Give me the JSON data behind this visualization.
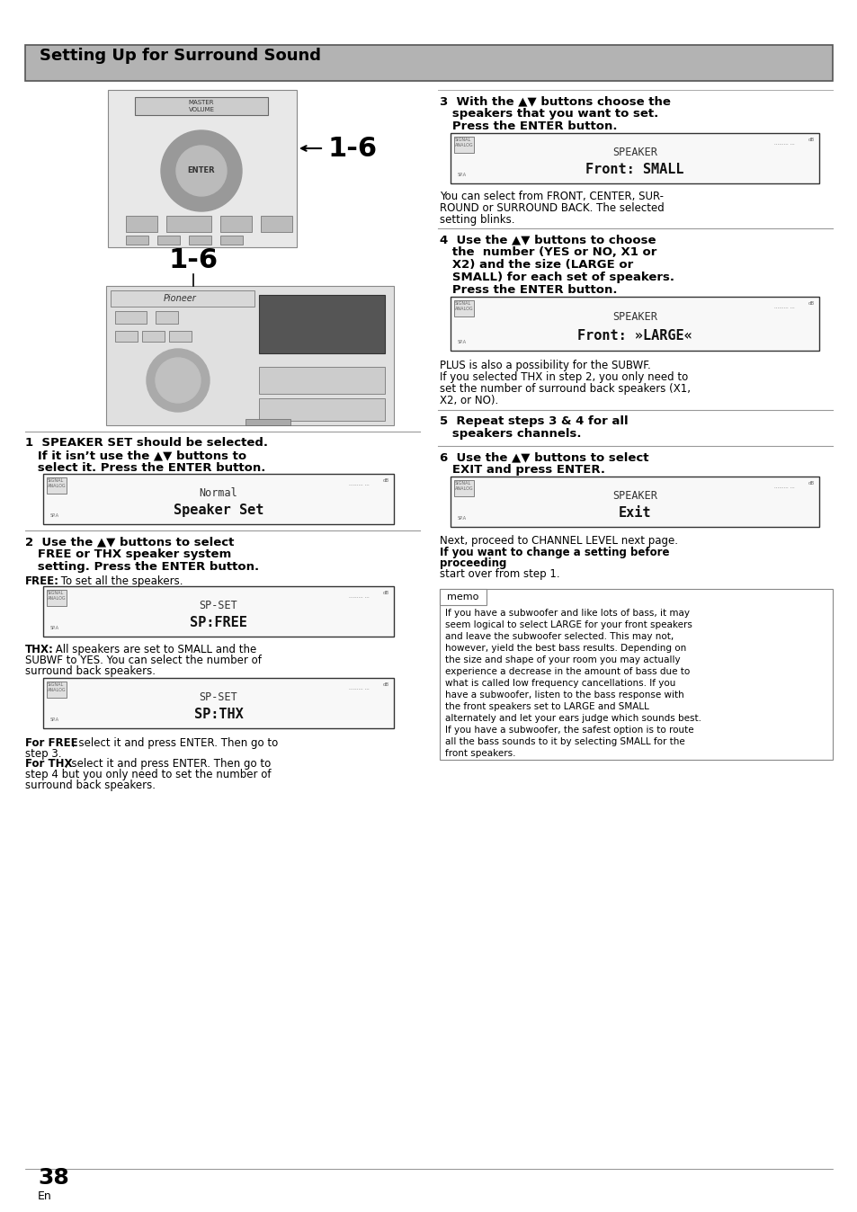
{
  "bg_color": "#ffffff",
  "header_bg": "#b3b3b3",
  "header_text": "Setting Up for Surround Sound",
  "page_number": "38",
  "page_sub": "En",
  "label_16": "1-6",
  "step1_line1": "1  SPEAKER SET should be selected.",
  "step1_line2": "   If it isn’t use the ▲▼ buttons to",
  "step1_line3": "   select it. Press the ENTER button.",
  "step2_line1": "2  Use the ▲▼ buttons to select",
  "step2_line2": "   FREE or THX speaker system",
  "step2_line3": "   setting. Press the ENTER button.",
  "free_bold": "FREE:",
  "free_rest": " To set all the speakers.",
  "thx_bold": "THX:",
  "thx_rest": " All speakers are set to SMALL and the\nSUBWF to YES. You can select the number of\nsurround back speakers.",
  "for_free_bold": "For FREE",
  "for_free_rest": ", select it and press ENTER. Then go to\nstep 3.",
  "for_thx_bold": "For THX",
  "for_thx_rest": ", select it and press ENTER. Then go to\nstep 4 but you only need to set the number of\nsurround back speakers.",
  "step3_line1": "3  With the ▲▼ buttons choose the",
  "step3_line2": "   speakers that you want to set.",
  "step3_line3": "   Press the ENTER button.",
  "step3_note": "You can select from FRONT, CENTER, SUR-\nROUND or SURROUND BACK. The selected\nsetting blinks.",
  "step4_line1": "4  Use the ▲▼ buttons to choose",
  "step4_line2": "   the  number (YES or NO, X1 or",
  "step4_line3": "   X2) and the size (LARGE or",
  "step4_line4": "   SMALL) for each set of speakers.",
  "step4_line5": "   Press the ENTER button.",
  "step4_note": "PLUS is also a possibility for the SUBWF.\nIf you selected THX in step 2, you only need to\nset the number of surround back speakers (X1,\nX2, or NO).",
  "step5_line1": "5  Repeat steps 3 & 4 for all",
  "step5_line2": "   speakers channels.",
  "step6_line1": "6  Use the ▲▼ buttons to select",
  "step6_line2": "   EXIT and press ENTER.",
  "step6_note_l1": "Next, proceed to CHANNEL LEVEL next page.",
  "step6_note_l2_bold": "If you want to change a setting before",
  "step6_note_l3_bold": "proceeding",
  "step6_note_l4": "start over from step 1.",
  "memo_label": "memo",
  "memo_text": "If you have a subwoofer and like lots of bass, it may\nseem logical to select LARGE for your front speakers\nand leave the subwoofer selected. This may not,\nhowever, yield the best bass results. Depending on\nthe size and shape of your room you may actually\nexperience a decrease in the amount of bass due to\nwhat is called low frequency cancellations. If you\nhave a subwoofer, listen to the bass response with\nthe front speakers set to LARGE and SMALL\nalternately and let your ears judge which sounds best.\nIf you have a subwoofer, the safest option is to route\nall the bass sounds to it by selecting SMALL for the\nfront speakers.",
  "disp1_top": "Normal",
  "disp1_bot": "Speaker Set",
  "disp2_top": "SP-SET",
  "disp2_bot": "SP:FREE",
  "disp3_top": "SP-SET",
  "disp3_bot": "SP:THX",
  "disp4_top": "SPEAKER",
  "disp4_bot": "Front: SMALL",
  "disp5_top": "SPEAKER",
  "disp5_bot": "Front: »LARGE«",
  "disp6_top": "SPEAKER",
  "disp6_bot": "Exit"
}
